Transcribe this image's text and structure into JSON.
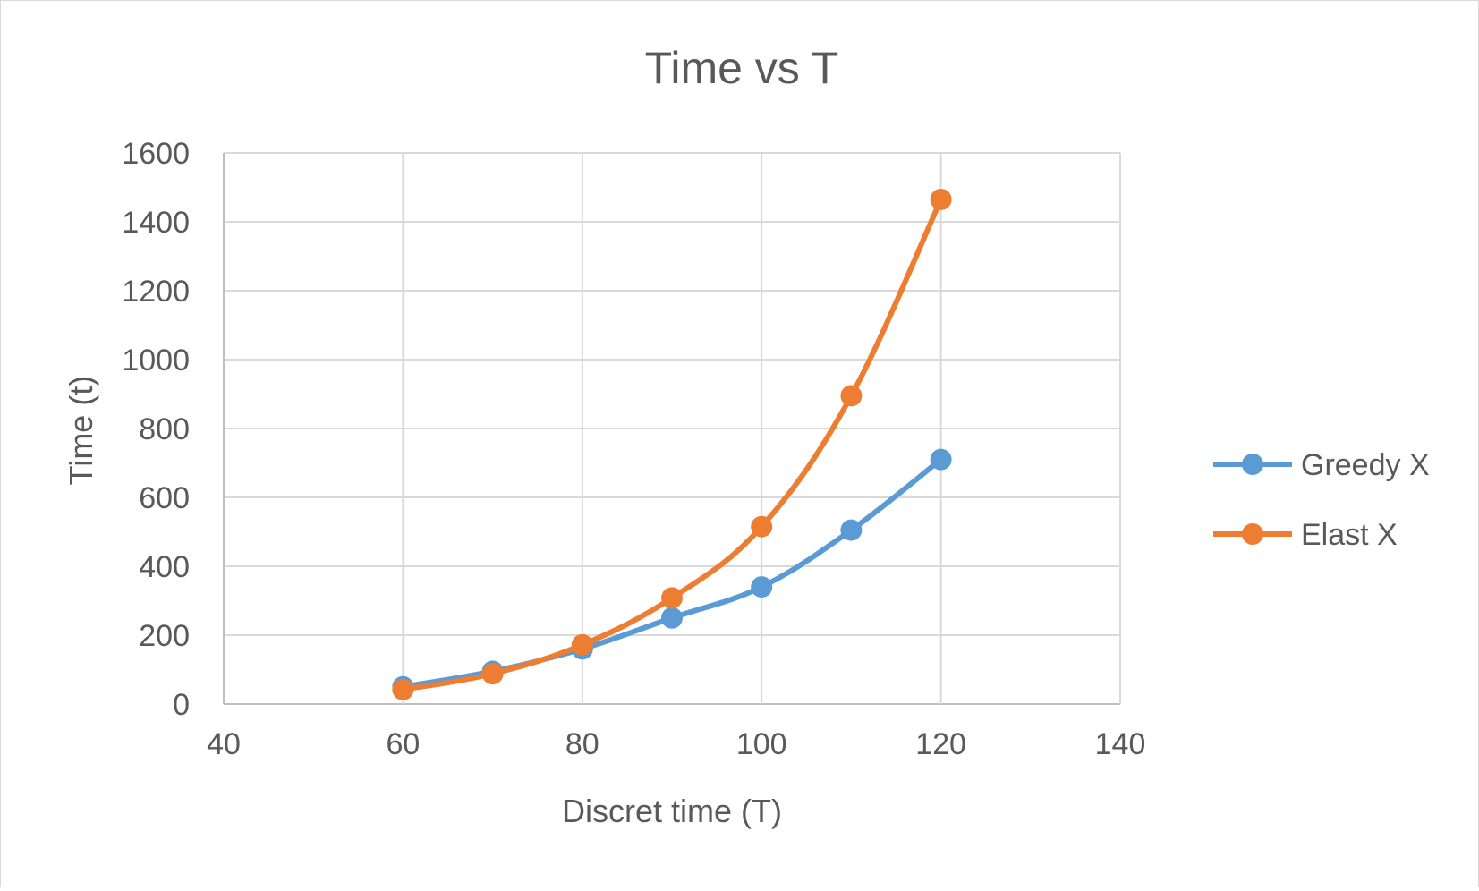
{
  "chart_data": {
    "type": "line",
    "title": "Time vs T",
    "xlabel": "Discret time (T)",
    "ylabel": "Time (t)",
    "xlim": [
      40,
      140
    ],
    "ylim": [
      0,
      1600
    ],
    "x_ticks": [
      40,
      60,
      80,
      100,
      120,
      140
    ],
    "y_ticks": [
      0,
      200,
      400,
      600,
      800,
      1000,
      1200,
      1400,
      1600
    ],
    "grid": true,
    "legend_position": "right",
    "series": [
      {
        "name": "Greedy X",
        "color": "#5B9BD5",
        "x": [
          60,
          70,
          80,
          90,
          100,
          110,
          120
        ],
        "values": [
          50,
          95,
          160,
          250,
          340,
          505,
          710
        ]
      },
      {
        "name": "Elast X",
        "color": "#ED7D31",
        "x": [
          60,
          70,
          80,
          90,
          100,
          110,
          120
        ],
        "values": [
          42,
          88,
          172,
          308,
          515,
          895,
          1465
        ]
      }
    ]
  }
}
